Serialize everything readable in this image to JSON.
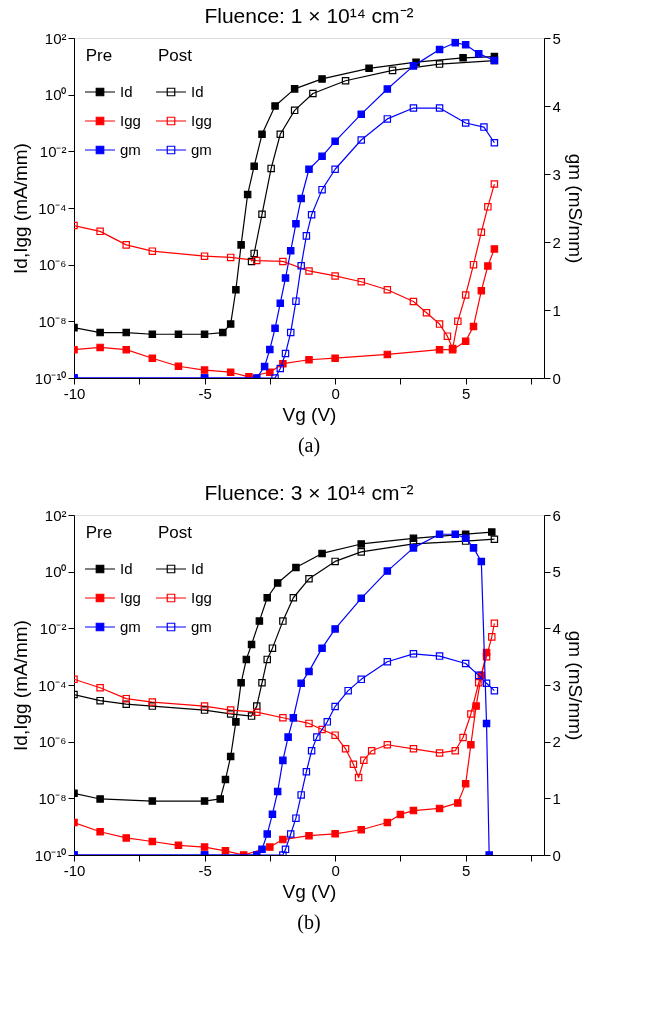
{
  "chart_data": [
    {
      "type": "line",
      "title": "Fluence: 1 × 10¹⁴ cm⁻²",
      "xlabel": "Vg (V)",
      "ylabel": "Id,Igg (mA/mm)",
      "y2label": "gm (mS/mm)",
      "annotations": [
        "Pre",
        "Post",
        "(a)"
      ],
      "log": true,
      "grid": false,
      "legend": "top left",
      "marker": "square",
      "line_style": "solid",
      "xlim": [
        -10,
        8
      ],
      "xticks": [
        -10,
        {
          "value": -7.5,
          "label": null
        },
        -5,
        {
          "value": -2.5,
          "label": null
        },
        0,
        {
          "value": 2.5,
          "label": null
        },
        5,
        {
          "value": 7.5,
          "label": null
        }
      ],
      "ylim": [
        1e-10,
        100
      ],
      "yticks": [
        {
          "value": 100,
          "label": "10²"
        },
        {
          "value": 1,
          "label": "10⁰"
        },
        {
          "value": 0.01,
          "label": "10⁻²"
        },
        {
          "value": 0.0001,
          "label": "10⁻⁴"
        },
        {
          "value": 1e-06,
          "label": "10⁻⁶"
        },
        {
          "value": 1e-08,
          "label": "10⁻⁸"
        },
        {
          "value": 1e-10,
          "label": "10⁻¹⁰"
        }
      ],
      "y2lim": [
        0,
        5
      ],
      "y2ticks": [
        0,
        1,
        2,
        3,
        4,
        5
      ],
      "series": [
        {
          "name": "Id",
          "color": "#000000",
          "x": [
            -10,
            -9,
            -8,
            -7,
            -6,
            -5,
            -4.3,
            -4.0,
            -3.8,
            -3.6,
            -3.35,
            -3.1,
            -2.8,
            -2.3,
            -1.55,
            -0.5,
            1.3,
            3.1,
            4.9,
            6.1
          ],
          "values": [
            6e-09,
            4e-09,
            4e-09,
            3.5e-09,
            3.5e-09,
            3.5e-09,
            4e-09,
            8e-09,
            1.3e-07,
            5e-06,
            0.0003,
            0.003,
            0.04,
            0.4,
            1.6,
            3.6,
            8.5,
            14,
            20,
            22
          ]
        },
        {
          "name": "Id",
          "color": "#000000",
          "x": [
            -3.2,
            -3.1,
            -2.8,
            -2.45,
            -2.1,
            -1.55,
            -0.85,
            0.4,
            2.2,
            4,
            6.1
          ],
          "values": [
            1.3e-06,
            2.5e-06,
            6e-05,
            0.0025,
            0.04,
            0.28,
            1.1,
            3.1,
            7.2,
            12,
            16
          ]
        },
        {
          "name": "Igg",
          "color": "#ff0000",
          "x": [
            -10,
            -9,
            -8,
            -7,
            -6,
            -5,
            -4,
            -3.3,
            -2.5,
            -2,
            -1,
            0,
            2,
            4,
            4.5,
            5,
            5.3,
            5.6,
            5.85,
            6.1
          ],
          "values": [
            1e-09,
            1.2e-09,
            1e-09,
            5e-10,
            2.6e-10,
            1.9e-10,
            1.6e-10,
            1.1e-10,
            1.6e-10,
            3.2e-10,
            4.4e-10,
            5e-10,
            6.8e-10,
            1e-09,
            1e-09,
            2e-09,
            6.6e-09,
            1.2e-07,
            9e-07,
            3.6e-06
          ]
        },
        {
          "name": "Igg",
          "color": "#ff0000",
          "x": [
            -10,
            -9,
            -8,
            -7,
            -5,
            -4,
            -3,
            -2,
            -1,
            0,
            1,
            2,
            3,
            3.5,
            4,
            4.3,
            4.5,
            4.7,
            5,
            5.3,
            5.6,
            5.85,
            6.1
          ],
          "values": [
            2.4e-05,
            1.5e-05,
            5e-06,
            3e-06,
            2e-06,
            1.8e-06,
            1.4e-06,
            1.3e-06,
            6e-07,
            4e-07,
            2.5e-07,
            1.3e-07,
            5e-08,
            2e-08,
            8e-09,
            3e-09,
            1.1e-09,
            1e-08,
            8.5e-08,
            1e-06,
            1.4e-05,
            0.00011,
            0.0007
          ]
        },
        {
          "name": "gm",
          "color": "#0000ff",
          "axis": "y2",
          "x": [
            -10,
            -5,
            -3,
            -2.7,
            -2.5,
            -2.3,
            -2.1,
            -1.9,
            -1.7,
            -1.5,
            -1.3,
            -1,
            -0.5,
            0,
            1,
            2,
            3,
            4,
            4.6,
            5,
            5.5,
            6.1
          ],
          "values": [
            0,
            0,
            0,
            0.17,
            0.42,
            0.73,
            1.1,
            1.47,
            1.87,
            2.27,
            2.64,
            3.07,
            3.26,
            3.48,
            3.88,
            4.25,
            4.59,
            4.83,
            4.93,
            4.9,
            4.77,
            4.67
          ]
        },
        {
          "name": "gm",
          "color": "#0000ff",
          "axis": "y2",
          "x": [
            -10,
            -5,
            -2.3,
            -2.1,
            -1.9,
            -1.7,
            -1.5,
            -1.3,
            -1.1,
            -0.9,
            -0.5,
            0,
            1,
            2,
            3,
            4,
            5,
            5.7,
            6.1
          ],
          "values": [
            0,
            0,
            0,
            0.14,
            0.36,
            0.67,
            1.13,
            1.65,
            2.09,
            2.4,
            2.77,
            3.07,
            3.5,
            3.81,
            3.97,
            3.97,
            3.75,
            3.69,
            3.46
          ]
        }
      ]
    },
    {
      "type": "line",
      "title": "Fluence: 3 × 10¹⁴ cm⁻²",
      "xlabel": "Vg (V)",
      "ylabel": "Id,Igg (mA/mm)",
      "y2label": "gm (mS/mm)",
      "annotations": [
        "Pre",
        "Post",
        "(b)"
      ],
      "log": true,
      "grid": false,
      "legend": "top left",
      "marker": "square",
      "line_style": "solid",
      "xlim": [
        -10,
        8
      ],
      "xticks": [
        -10,
        {
          "value": -7.5,
          "label": null
        },
        -5,
        {
          "value": -2.5,
          "label": null
        },
        0,
        {
          "value": 2.5,
          "label": null
        },
        5,
        {
          "value": 7.5,
          "label": null
        }
      ],
      "ylim": [
        1e-10,
        100
      ],
      "yticks": [
        {
          "value": 100,
          "label": "10²"
        },
        {
          "value": 1,
          "label": "10⁰"
        },
        {
          "value": 0.01,
          "label": "10⁻²"
        },
        {
          "value": 0.0001,
          "label": "10⁻⁴"
        },
        {
          "value": 1e-06,
          "label": "10⁻⁶"
        },
        {
          "value": 1e-08,
          "label": "10⁻⁸"
        },
        {
          "value": 1e-10,
          "label": "10⁻¹⁰"
        }
      ],
      "y2lim": [
        0,
        6
      ],
      "y2ticks": [
        0,
        1,
        2,
        3,
        4,
        5,
        6
      ],
      "series": [
        {
          "name": "Id",
          "color": "#000000",
          "x": [
            -10,
            -9,
            -7,
            -5,
            -4.4,
            -4.2,
            -4,
            -3.8,
            -3.6,
            -3.4,
            -3.2,
            -2.9,
            -2.6,
            -2.2,
            -1.5,
            -0.5,
            1,
            3,
            5,
            6
          ],
          "values": [
            1.5e-08,
            9.5e-09,
            8e-09,
            8e-09,
            9.5e-09,
            4.6e-08,
            3e-07,
            5e-06,
            0.00012,
            0.0008,
            0.0027,
            0.018,
            0.12,
            0.4,
            1.4,
            4.4,
            9.5,
            15,
            21,
            25
          ]
        },
        {
          "name": "Id",
          "color": "#000000",
          "x": [
            -10,
            -9,
            -8,
            -7,
            -5,
            -4,
            -3.2,
            -3,
            -2.8,
            -2.6,
            -2.4,
            -2,
            -1.6,
            -1,
            0,
            1,
            3,
            5,
            6.1
          ],
          "values": [
            4.6e-05,
            2.8e-05,
            2.1e-05,
            1.8e-05,
            1.3e-05,
            9.5e-06,
            8e-06,
            1.8e-05,
            0.00012,
            0.0008,
            0.002,
            0.018,
            0.12,
            0.56,
            2.3,
            5,
            9.5,
            12,
            14
          ]
        },
        {
          "name": "Igg",
          "color": "#ff0000",
          "x": [
            -10,
            -9,
            -8,
            -7,
            -6,
            -5,
            -4.2,
            -3.5,
            -2.5,
            -2,
            -1,
            0,
            1,
            2,
            2.5,
            3,
            4,
            4.7,
            5,
            5.2,
            5.4,
            5.6,
            5.8
          ],
          "values": [
            1.4e-09,
            6.6e-10,
            4e-10,
            3e-10,
            2.2e-10,
            1.9e-10,
            1.4e-10,
            1e-10,
            1.9e-10,
            3.5e-10,
            4.8e-10,
            5.6e-10,
            7.8e-10,
            1.4e-09,
            2.7e-09,
            3.7e-09,
            4.4e-09,
            6.9e-09,
            3.3e-08,
            7.8e-07,
            1.8e-05,
            0.00022,
            0.0014
          ]
        },
        {
          "name": "Igg",
          "color": "#ff0000",
          "x": [
            -10,
            -9,
            -8,
            -7,
            -5,
            -4,
            -3,
            -2,
            -1,
            -0.5,
            0,
            0.4,
            0.7,
            0.9,
            1.1,
            1.4,
            2,
            3,
            4,
            4.6,
            4.9,
            5.2,
            5.5,
            5.8,
            6,
            6.1
          ],
          "values": [
            0.00016,
            8e-05,
            3.3e-05,
            2.5e-05,
            1.8e-05,
            1.3e-05,
            1.1e-05,
            7e-06,
            4.4e-06,
            2.7e-06,
            1.7e-06,
            5.6e-07,
            1.6e-07,
            5.4e-08,
            2.2e-07,
            4.8e-07,
            7.8e-07,
            5.6e-07,
            4e-07,
            4.8e-07,
            1.4e-06,
            9.5e-06,
            0.00012,
            0.001,
            0.005,
            0.015
          ]
        },
        {
          "name": "gm",
          "color": "#0000ff",
          "axis": "y2",
          "x": [
            -10,
            -5,
            -3,
            -2.8,
            -2.6,
            -2.4,
            -2.2,
            -2,
            -1.8,
            -1.6,
            -1.3,
            -1,
            -0.5,
            0,
            1,
            2,
            3,
            4,
            4.6,
            5,
            5.3,
            5.6,
            5.8,
            5.9
          ],
          "values": [
            0,
            0,
            0,
            0.1,
            0.37,
            0.72,
            1.12,
            1.67,
            2.08,
            2.42,
            3.03,
            3.24,
            3.65,
            3.99,
            4.53,
            5.01,
            5.42,
            5.66,
            5.66,
            5.59,
            5.42,
            5.18,
            2.32,
            0
          ]
        },
        {
          "name": "gm",
          "color": "#0000ff",
          "axis": "y2",
          "x": [
            -10,
            -5,
            -2,
            -1.9,
            -1.7,
            -1.5,
            -1.3,
            -1.1,
            -0.9,
            -0.7,
            -0.3,
            0,
            0.5,
            1,
            2,
            3,
            4,
            5,
            5.5,
            5.8,
            6.1
          ],
          "values": [
            0,
            0,
            0,
            0.1,
            0.37,
            0.65,
            1.06,
            1.47,
            1.84,
            2.08,
            2.35,
            2.62,
            2.9,
            3.1,
            3.41,
            3.55,
            3.51,
            3.38,
            3.17,
            3.03,
            2.9
          ]
        }
      ]
    }
  ]
}
